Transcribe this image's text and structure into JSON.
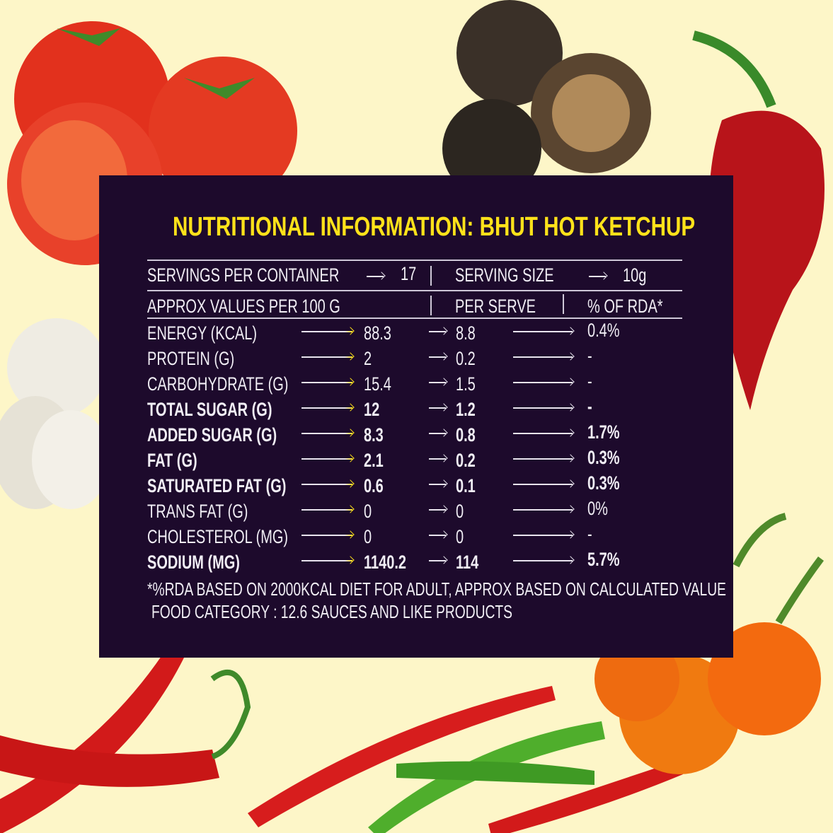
{
  "title": "NUTRITIONAL INFORMATION: BHUT HOT KETCHUP",
  "servings": {
    "label": "SERVINGS PER CONTAINER",
    "value": "17",
    "size_label": "SERVING SIZE",
    "size_value": "10g"
  },
  "headers": {
    "per100": "APPROX VALUES PER 100 G",
    "per_serve": "PER SERVE",
    "rda": "% OF RDA*"
  },
  "rows": [
    {
      "name": "ENERGY (KCAL)",
      "per100": "88.3",
      "serve": "8.8",
      "rda": "0.4%",
      "bold": false
    },
    {
      "name": "PROTEIN (G)",
      "per100": "2",
      "serve": "0.2",
      "rda": "-",
      "bold": false
    },
    {
      "name": "CARBOHYDRATE (G)",
      "per100": "15.4",
      "serve": "1.5",
      "rda": "-",
      "bold": false
    },
    {
      "name": "TOTAL SUGAR (G)",
      "per100": "12",
      "serve": "1.2",
      "rda": "-",
      "bold": true
    },
    {
      "name": "ADDED SUGAR (G)",
      "per100": "8.3",
      "serve": "0.8",
      "rda": "1.7%",
      "bold": true
    },
    {
      "name": "FAT (G)",
      "per100": "2.1",
      "serve": "0.2",
      "rda": "0.3%",
      "bold": true
    },
    {
      "name": "SATURATED FAT (G)",
      "per100": "0.6",
      "serve": "0.1",
      "rda": "0.3%",
      "bold": true
    },
    {
      "name": "TRANS FAT (G)",
      "per100": "0",
      "serve": "0",
      "rda": "0%",
      "bold": false
    },
    {
      "name": "CHOLESTEROL (MG)",
      "per100": "0",
      "serve": "0",
      "rda": "-",
      "bold": false
    },
    {
      "name": "SODIUM (MG)",
      "per100": "1140.2",
      "serve": "114",
      "rda": "5.7%",
      "bold": true
    }
  ],
  "footnote": "*%RDA BASED ON 2000KCAL DIET FOR ADULT, APPROX BASED ON CALCULATED VALUE",
  "category": "FOOD CATEGORY : 12.6 SAUCES AND LIKE PRODUCTS",
  "colors": {
    "background": "#fdf6c8",
    "panel": "#1d0a2c",
    "title": "#ffe21a"
  },
  "decorations": [
    "tomato",
    "truffle",
    "carolina-reaper-pepper",
    "garlic",
    "red-chili",
    "green-chili",
    "habanero-pepper"
  ]
}
